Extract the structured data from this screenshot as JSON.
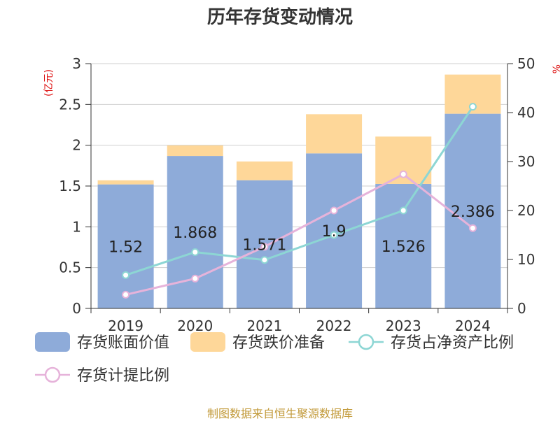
{
  "title": "历年存货变动情况",
  "source": "制图数据来自恒生聚源数据库",
  "chart_data": {
    "type": "bar",
    "categories": [
      "2019",
      "2020",
      "2021",
      "2022",
      "2023",
      "2024"
    ],
    "series": [
      {
        "name": "存货账面价值",
        "kind": "bar",
        "axis": "left",
        "color": "#8eabd9",
        "values": [
          1.52,
          1.868,
          1.571,
          1.9,
          1.526,
          2.386
        ]
      },
      {
        "name": "存货跌价准备",
        "kind": "bar",
        "axis": "left",
        "color": "#fed799",
        "values": [
          0.05,
          0.13,
          0.23,
          0.48,
          0.58,
          0.48
        ]
      },
      {
        "name": "存货占净资产比例",
        "kind": "line",
        "axis": "right",
        "color": "#8dd6d4",
        "values": [
          6.8,
          11.5,
          9.9,
          15.0,
          20.0,
          41.2
        ]
      },
      {
        "name": "存货计提比例",
        "kind": "line",
        "axis": "right",
        "color": "#e6b3da",
        "values": [
          2.8,
          6.1,
          12.6,
          20.0,
          27.4,
          16.4
        ]
      }
    ],
    "data_labels": [
      "1.52",
      "1.868",
      "1.571",
      "1.9",
      "1.526",
      "2.386"
    ],
    "y_left": {
      "unit": "(亿元)",
      "ylim": [
        0,
        3
      ],
      "ticks": [
        "0",
        "0.5",
        "1",
        "1.5",
        "2",
        "2.5",
        "3"
      ]
    },
    "y_right": {
      "unit": "%",
      "ylim": [
        0,
        50
      ],
      "ticks": [
        "0",
        "10",
        "20",
        "30",
        "40",
        "50"
      ]
    },
    "grid": true,
    "legend_position": "bottom"
  }
}
